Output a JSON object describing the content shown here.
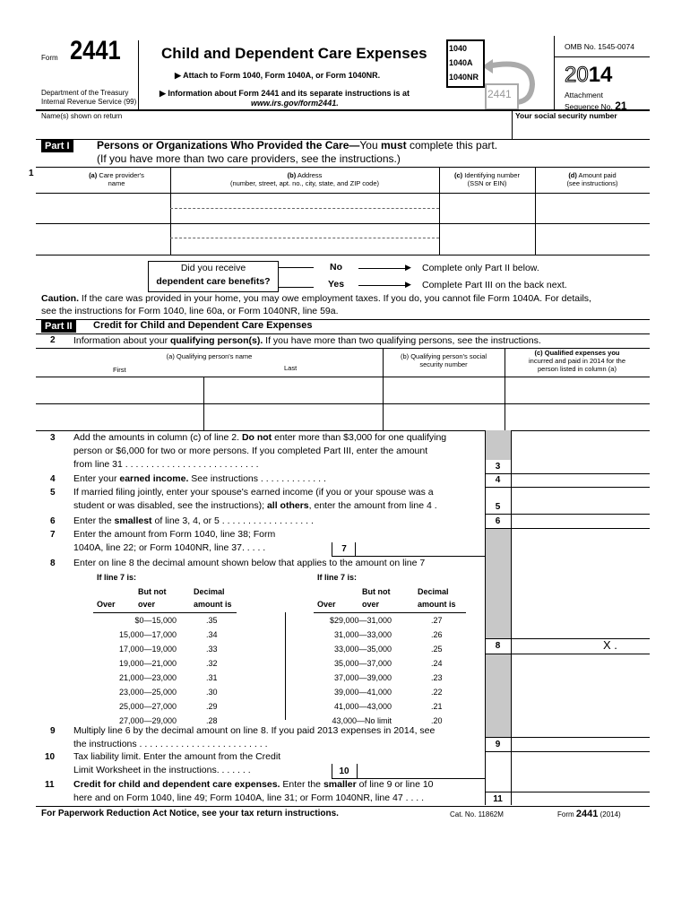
{
  "header": {
    "form_word": "Form",
    "form_number": "2441",
    "title": "Child and Dependent Care Expenses",
    "attach": "▶ Attach to Form 1040, Form 1040A, or Form 1040NR.",
    "info": "▶ Information about Form 2441 and its separate instructions is at",
    "url": "www.irs.gov/form2441.",
    "dept": "Department of the Treasury",
    "irs": "Internal Revenue Service (99)",
    "omb": "OMB No. 1545-0074",
    "year_outline": "20",
    "year_bold": "14",
    "attachment": "Attachment",
    "sequence": "Sequence No.",
    "seq_no": "21",
    "icon_forms": [
      "1040",
      "1040A",
      "1040NR"
    ],
    "icon_back": "2441"
  },
  "name_label": "Name(s) shown on return",
  "ssn_label": "Your social security number",
  "part1": {
    "tag": "Part I",
    "title": "Persons or Organizations Who Provided the Care—",
    "title_rest": "You ",
    "must": "must",
    "title_end": " complete this part.",
    "subtitle": "(If you have more than two care providers, see the instructions.)",
    "line": "1",
    "col_a1": "(a)",
    "col_a2": " Care provider's",
    "col_a3": "name",
    "col_b1": "(b)",
    "col_b2": " Address",
    "col_b3": "(number, street, apt. no., city, state, and ZIP code)",
    "col_c1": "(c)",
    "col_c2": " Identifying number",
    "col_c3": "(SSN or EIN)",
    "col_d1": "(d)",
    "col_d2": " Amount paid",
    "col_d3": "(see instructions)"
  },
  "benefits": {
    "q1": "Did you receive",
    "q2": "dependent care benefits?",
    "no": "No",
    "yes": "Yes",
    "no_text": "Complete only Part II below.",
    "yes_text": "Complete Part III on the back next."
  },
  "caution": {
    "bold": "Caution.",
    "text": " If the care was provided in your home, you may owe employment taxes. If you do, you cannot file Form 1040A. For details,",
    "text2": "see the instructions for Form 1040, line 60a, or Form 1040NR, line 59a."
  },
  "part2": {
    "tag": "Part II",
    "title": "Credit for Child and Dependent Care Expenses",
    "line2_num": "2",
    "line2_a": "Information about your ",
    "line2_b": "qualifying person(s).",
    "line2_c": " If you have more than two qualifying persons, see the instructions.",
    "col_a": "(a) Qualifying person's name",
    "first": "First",
    "last": "Last",
    "col_b1": "(b) Qualifying person's social",
    "col_b2": "security number",
    "col_c1": "(c) Qualified expenses you",
    "col_c2": "incurred and paid in 2014 for the",
    "col_c3": "person listed in column (a)"
  },
  "lines": {
    "l3": {
      "num": "3",
      "t1a": "Add the amounts in column (c) of line 2. ",
      "t1b": "Do not",
      "t1c": " enter more than $3,000 for one qualifying",
      "t2": "person or $6,000 for two or more persons. If you completed Part III, enter the amount",
      "t3": "from line 31  .  .  .  .  .  .  .  .  .  .  .  .  .  .  .  .  .  .  .  .  .  .  .  .  .  ."
    },
    "l4": {
      "num": "4",
      "a": "Enter your ",
      "b": "earned income.",
      "c": " See instructions  .  .  .  .  .  .  .  .  .  .  .  .  ."
    },
    "l5": {
      "num": "5",
      "t1": "If married filing jointly, enter your spouse's earned income (if you or your spouse was a",
      "t2a": "student or was disabled, see the instructions); ",
      "t2b": "all others",
      "t2c": ", enter the amount from line 4  ."
    },
    "l6": {
      "num": "6",
      "a": "Enter the ",
      "b": "smallest",
      "c": " of line 3, 4, or 5  .  .  .  .  .  .  .  .  .  .  .  .  .  .  .  .  .  ."
    },
    "l7": {
      "num": "7",
      "t1": "Enter the amount from Form 1040, line 38; Form",
      "t2": "1040A, line 22; or Form 1040NR, line 37.  .  .  .  ."
    },
    "l8": {
      "num": "8",
      "t1": "Enter on line 8 the decimal amount shown below that applies to the amount on line 7",
      "if7": "If line 7 is:",
      "butnot": "But not",
      "over": "Over",
      "over2": "over",
      "decimal": "Decimal",
      "amountis": "amount is",
      "value": "X ."
    },
    "l9": {
      "num": "9",
      "t1": "Multiply line 6 by the decimal amount on line 8. If you paid 2013 expenses in 2014, see",
      "t2": "the instructions  .  .  .  .  .  .  .  .  .  .  .  .  .  .  .  .  .  .  .  .  .  .  .  .  ."
    },
    "l10": {
      "num": "10",
      "t1": "Tax liability limit. Enter the amount from the Credit",
      "t2": "Limit Worksheet in the instructions.  .  .  .  .  .  ."
    },
    "l11": {
      "num": "11",
      "t1a": "Credit for child and dependent care expenses.",
      "t1b": " Enter the ",
      "t1c": "smaller",
      "t1d": " of line 9 or line 10",
      "t2": "here and on Form 1040, line 49; Form 1040A, line 31; or Form 1040NR, line 47  .  .  .  ."
    }
  },
  "table8": {
    "left": [
      [
        "$0—15,000",
        ".35"
      ],
      [
        "15,000—17,000",
        ".34"
      ],
      [
        "17,000—19,000",
        ".33"
      ],
      [
        "19,000—21,000",
        ".32"
      ],
      [
        "21,000—23,000",
        ".31"
      ],
      [
        "23,000—25,000",
        ".30"
      ],
      [
        "25,000—27,000",
        ".29"
      ],
      [
        "27,000—29,000",
        ".28"
      ]
    ],
    "right": [
      [
        "$29,000—31,000",
        ".27"
      ],
      [
        "31,000—33,000",
        ".26"
      ],
      [
        "33,000—35,000",
        ".25"
      ],
      [
        "35,000—37,000",
        ".24"
      ],
      [
        "37,000—39,000",
        ".23"
      ],
      [
        "39,000—41,000",
        ".22"
      ],
      [
        "41,000—43,000",
        ".21"
      ],
      [
        "43,000—No limit",
        ".20"
      ]
    ]
  },
  "footer": {
    "notice": "For Paperwork Reduction Act Notice, see your tax return instructions.",
    "cat": "Cat. No. 11862M",
    "form": "Form ",
    "num": "2441",
    "year": " (2014)"
  }
}
